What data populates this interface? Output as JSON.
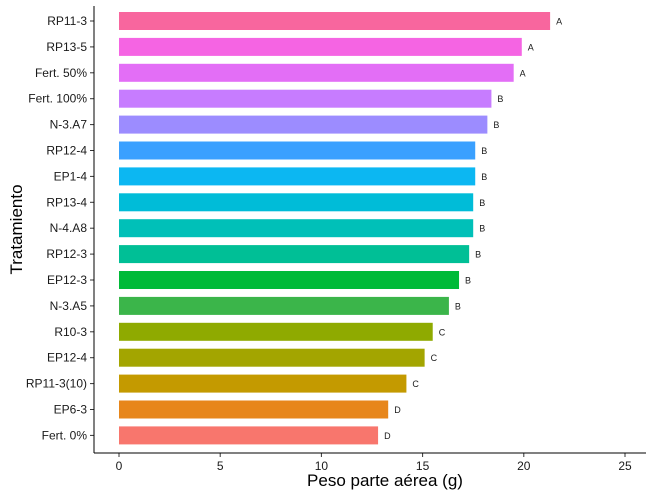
{
  "chart_data": {
    "type": "bar",
    "orientation": "horizontal",
    "categories": [
      "RP11-3",
      "RP13-5",
      "Fert. 50%",
      "Fert. 100%",
      "N-3.A7",
      "RP12-4",
      "EP1-4",
      "RP13-4",
      "N-4.A8",
      "RP12-3",
      "EP12-3",
      "N-3.A5",
      "R10-3",
      "EP12-4",
      "RP11-3(10)",
      "EP6-3",
      "Fert. 0%"
    ],
    "values": [
      21.3,
      19.9,
      19.5,
      18.4,
      18.2,
      17.6,
      17.6,
      17.5,
      17.5,
      17.3,
      16.8,
      16.3,
      15.5,
      15.1,
      14.2,
      13.3,
      12.8
    ],
    "letters": [
      "A",
      "A",
      "A",
      "B",
      "B",
      "B",
      "B",
      "B",
      "B",
      "B",
      "B",
      "B",
      "C",
      "C",
      "C",
      "D",
      "D"
    ],
    "colors": [
      "#F8669E",
      "#F564E3",
      "#E36EF6",
      "#C77CFF",
      "#9C8CFF",
      "#3AA0FF",
      "#0CB7F2",
      "#00BCD8",
      "#00C0B8",
      "#00BF96",
      "#00BA38",
      "#3BB54A",
      "#8FAA00",
      "#A3A500",
      "#C49A00",
      "#E7861B",
      "#F8766D"
    ],
    "xlabel": "Peso parte aérea (g)",
    "ylabel": "Tratamiento",
    "xlim": [
      0,
      25
    ],
    "xticks": [
      "0",
      "5",
      "10",
      "15",
      "20",
      "25"
    ],
    "grid": false
  }
}
